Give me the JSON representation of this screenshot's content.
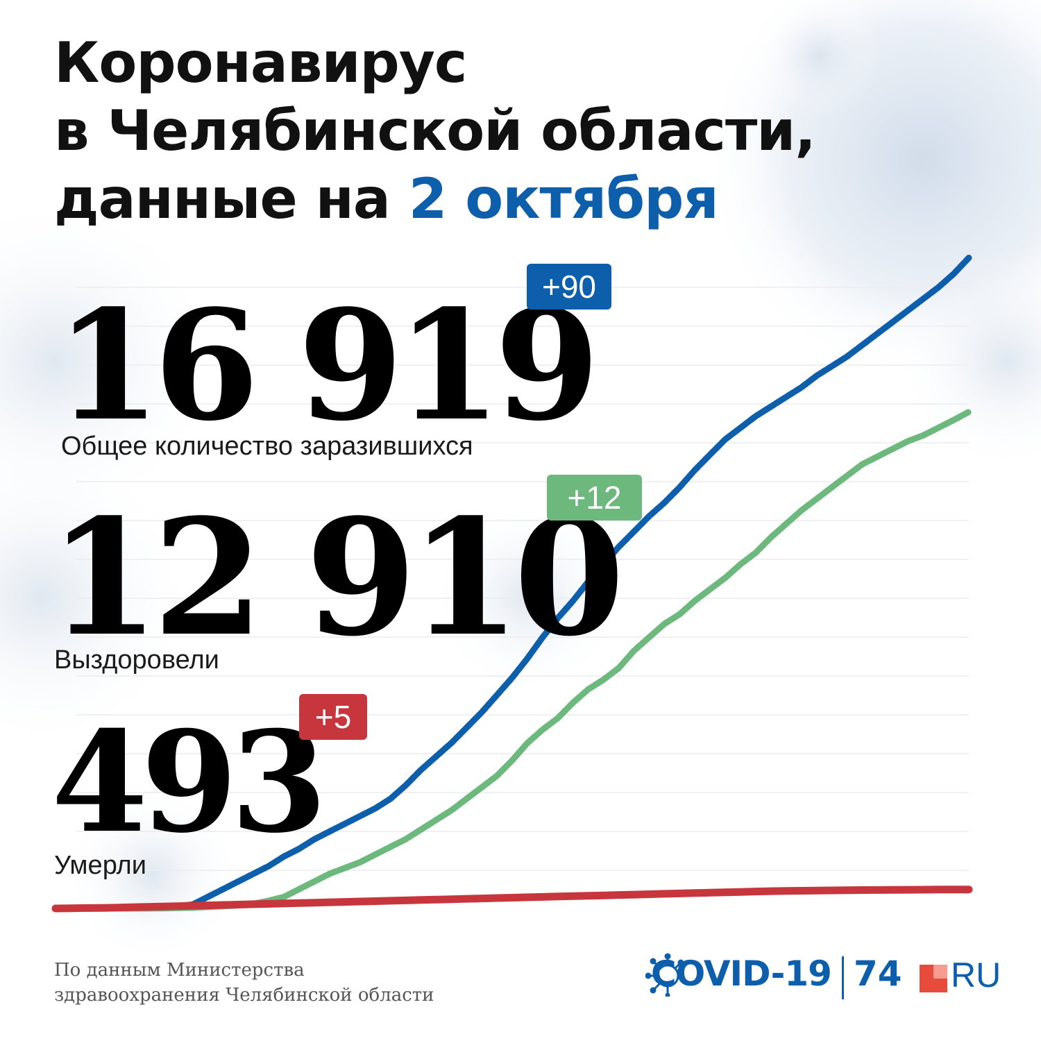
{
  "title": {
    "line1": "Коронавирус",
    "line2": "в Челябинской области,",
    "line3_prefix": "данные на ",
    "line3_highlight": "2 октября"
  },
  "stats": [
    {
      "value": "16 919",
      "label": "Общее количество заразившихся",
      "delta": "+90",
      "color": "#0d5eab"
    },
    {
      "value": "12 910",
      "label": "Выздоровели",
      "delta": "+12",
      "color": "#6db97d"
    },
    {
      "value": "493",
      "label": "Умерли",
      "delta": "+5",
      "color": "#c8363d"
    }
  ],
  "source": {
    "line1": "По данным Министерства",
    "line2": "здравоохранения Челябинской области"
  },
  "logo": {
    "covid": "COVID-19",
    "num": "74",
    "ru": "RU"
  },
  "chart_data": {
    "type": "line",
    "ylim": [
      0,
      17000
    ],
    "grid": true,
    "series": [
      {
        "color": "#0d5eab",
        "values": [
          0,
          0,
          0,
          0,
          10,
          20,
          30,
          40,
          60,
          100,
          300,
          500,
          700,
          900,
          1100,
          1350,
          1550,
          1800,
          2000,
          2200,
          2400,
          2600,
          2850,
          3200,
          3600,
          3950,
          4300,
          4700,
          5100,
          5550,
          6000,
          6500,
          7050,
          7550,
          8000,
          8500,
          8950,
          9400,
          9800,
          10200,
          10550,
          10950,
          11400,
          11800,
          12200,
          12500,
          12800,
          13050,
          13300,
          13550,
          13850,
          14100,
          14350,
          14650,
          14950,
          15250,
          15550,
          15850,
          16150,
          16500,
          16919
        ]
      },
      {
        "color": "#6db97d",
        "values": [
          0,
          0,
          0,
          0,
          0,
          0,
          0,
          5,
          10,
          20,
          40,
          60,
          80,
          120,
          200,
          300,
          500,
          700,
          900,
          1050,
          1200,
          1400,
          1600,
          1800,
          2050,
          2300,
          2550,
          2850,
          3150,
          3450,
          3850,
          4300,
          4650,
          4950,
          5350,
          5700,
          5950,
          6250,
          6700,
          7050,
          7400,
          7650,
          8000,
          8300,
          8600,
          8950,
          9250,
          9650,
          10000,
          10350,
          10650,
          10950,
          11250,
          11550,
          11750,
          11950,
          12150,
          12300,
          12500,
          12700,
          12910
        ]
      },
      {
        "color": "#c8363d",
        "values": [
          0,
          5,
          10,
          15,
          20,
          30,
          40,
          50,
          60,
          70,
          80,
          90,
          100,
          110,
          120,
          130,
          140,
          150,
          160,
          170,
          180,
          190,
          200,
          210,
          220,
          230,
          240,
          250,
          260,
          270,
          280,
          290,
          300,
          310,
          320,
          330,
          340,
          350,
          360,
          370,
          380,
          390,
          400,
          410,
          420,
          430,
          440,
          450,
          455,
          460,
          465,
          470,
          475,
          478,
          480,
          483,
          485,
          488,
          490,
          491,
          493
        ]
      }
    ]
  }
}
